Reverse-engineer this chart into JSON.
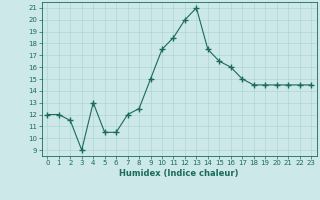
{
  "x": [
    0,
    1,
    2,
    3,
    4,
    5,
    6,
    7,
    8,
    9,
    10,
    11,
    12,
    13,
    14,
    15,
    16,
    17,
    18,
    19,
    20,
    21,
    22,
    23
  ],
  "y": [
    12,
    12,
    11.5,
    9,
    13,
    10.5,
    10.5,
    12,
    12.5,
    15,
    17.5,
    18.5,
    20,
    21,
    17.5,
    16.5,
    16,
    15,
    14.5,
    14.5,
    14.5,
    14.5,
    14.5,
    14.5
  ],
  "xlabel": "Humidex (Indice chaleur)",
  "ylim": [
    8.5,
    21.5
  ],
  "xlim": [
    -0.5,
    23.5
  ],
  "yticks": [
    9,
    10,
    11,
    12,
    13,
    14,
    15,
    16,
    17,
    18,
    19,
    20,
    21
  ],
  "xticks": [
    0,
    1,
    2,
    3,
    4,
    5,
    6,
    7,
    8,
    9,
    10,
    11,
    12,
    13,
    14,
    15,
    16,
    17,
    18,
    19,
    20,
    21,
    22,
    23
  ],
  "line_color": "#1a6b5a",
  "bg_color": "#cce8e8",
  "grid_color": "#afd4d4",
  "marker": "+",
  "marker_size": 4,
  "marker_lw": 1.0,
  "line_width": 0.8,
  "tick_fontsize": 5.0,
  "xlabel_fontsize": 6.0
}
